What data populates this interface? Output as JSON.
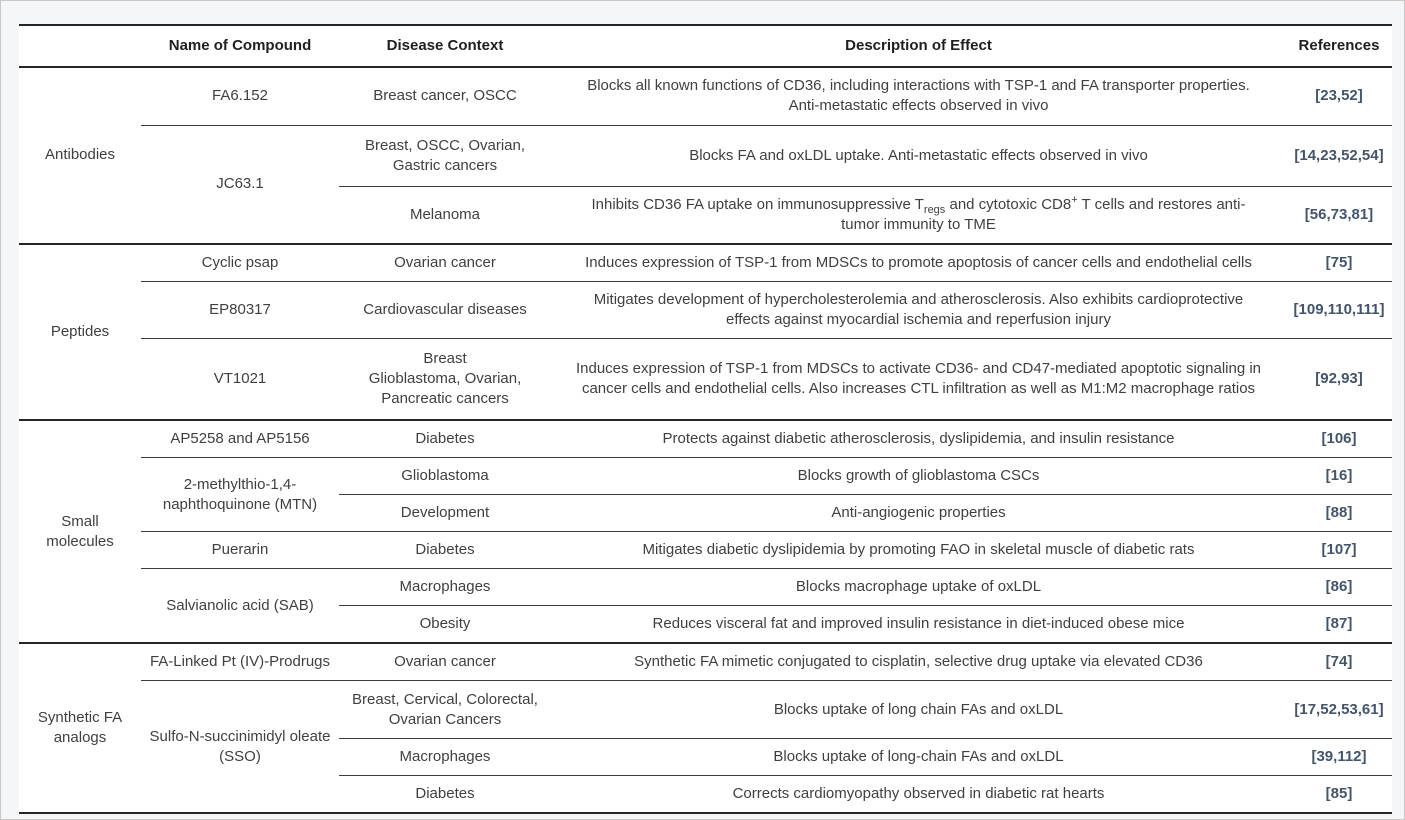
{
  "colors": {
    "page_background": "#f5f6f7",
    "body_text": "#404040",
    "header_text": "#1f1f1f",
    "rule": "#262626",
    "reference_accent": "#44546a"
  },
  "table": {
    "columns": [
      "",
      "Name of Compound",
      "Disease Context",
      "Description of Effect",
      "References"
    ],
    "groups": [
      {
        "category": "Antibodies",
        "rows": [
          {
            "compound": "FA6.152",
            "disease": "Breast cancer, OSCC",
            "description": "Blocks all known functions of CD36, including interactions with TSP-1 and FA transporter properties. Anti-metastatic effects observed in vivo",
            "references": "[23,52]"
          },
          {
            "compound": "JC63.1",
            "compound_rowspan": 2,
            "disease": "Breast, OSCC, Ovarian,\nGastric cancers",
            "description": "Blocks FA and oxLDL uptake. Anti-metastatic effects observed in vivo",
            "references": "[14,23,52,54]"
          },
          {
            "disease": "Melanoma",
            "description_parts": [
              {
                "text": "Inhibits CD36 FA uptake on immunosuppressive T",
                "style": "normal"
              },
              {
                "text": "regs",
                "style": "sub"
              },
              {
                "text": " and cytotoxic CD8",
                "style": "normal"
              },
              {
                "text": "+",
                "style": "sup"
              },
              {
                "text": " T cells and restores anti-tumor immunity to TME",
                "style": "normal"
              }
            ],
            "references": "[56,73,81]"
          }
        ]
      },
      {
        "category": "Peptides",
        "rows": [
          {
            "compound": "Cyclic psap",
            "disease": "Ovarian cancer",
            "description": "Induces expression of TSP-1 from MDSCs to promote apoptosis of cancer cells and endothelial cells",
            "references": "[75]"
          },
          {
            "compound": "EP80317",
            "disease": "Cardiovascular diseases",
            "description": "Mitigates development of hypercholesterolemia and atherosclerosis. Also exhibits cardioprotective effects against myocardial ischemia and reperfusion injury",
            "references": "[109,110,111]"
          },
          {
            "compound": "VT1021",
            "disease": "Breast\nGlioblastoma, Ovarian,\nPancreatic cancers",
            "description": "Induces expression of TSP-1 from MDSCs to activate CD36- and CD47-mediated apoptotic signaling in cancer cells and endothelial cells. Also increases CTL infiltration as well as M1:M2 macrophage ratios",
            "references": "[92,93]"
          }
        ]
      },
      {
        "category": "Small\nmolecules",
        "rows": [
          {
            "compound": "AP5258 and AP5156",
            "disease": "Diabetes",
            "description": "Protects against diabetic atherosclerosis, dyslipidemia, and insulin resistance",
            "references": "[106]"
          },
          {
            "compound": "2-methylthio-1,4-\nnaphthoquinone (MTN)",
            "compound_rowspan": 2,
            "disease": "Glioblastoma",
            "description": "Blocks growth of glioblastoma CSCs",
            "references": "[16]"
          },
          {
            "disease": "Development",
            "description": "Anti-angiogenic properties",
            "references": "[88]"
          },
          {
            "compound": "Puerarin",
            "disease": "Diabetes",
            "description": "Mitigates diabetic dyslipidemia by promoting FAO in skeletal muscle of diabetic rats",
            "references": "[107]"
          },
          {
            "compound": "Salvianolic acid (SAB)",
            "compound_rowspan": 2,
            "disease": "Macrophages",
            "description": "Blocks macrophage uptake of oxLDL",
            "references": "[86]"
          },
          {
            "disease": "Obesity",
            "description": "Reduces visceral fat and improved insulin resistance in diet-induced obese mice",
            "references": "[87]"
          }
        ]
      },
      {
        "category": "Synthetic FA\nanalogs",
        "rows": [
          {
            "compound": "FA-Linked Pt (IV)-Prodrugs",
            "disease": "Ovarian cancer",
            "description": "Synthetic FA mimetic conjugated to cisplatin, selective drug uptake via elevated CD36",
            "references": "[74]"
          },
          {
            "compound": "Sulfo-N-succinimidyl oleate\n(SSO)",
            "compound_rowspan": 3,
            "disease": "Breast, Cervical, Colorectal,\nOvarian Cancers",
            "description": "Blocks uptake of long chain FAs and oxLDL",
            "references": "[17,52,53,61]"
          },
          {
            "disease": "Macrophages",
            "description": "Blocks uptake of long-chain FAs and oxLDL",
            "references": "[39,112]"
          },
          {
            "disease": "Diabetes",
            "description": "Corrects cardiomyopathy observed in diabetic rat hearts",
            "references": "[85]"
          }
        ]
      }
    ]
  }
}
